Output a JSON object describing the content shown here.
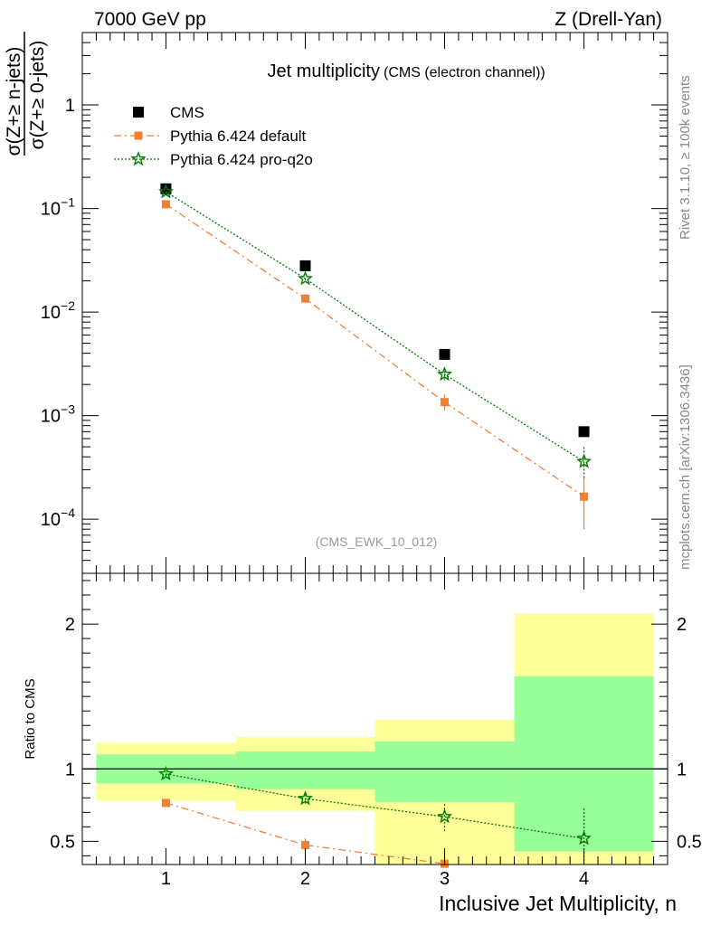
{
  "header": {
    "left": "7000 GeV pp",
    "right": "Z (Drell-Yan)"
  },
  "side_labels": {
    "rivet": "Rivet 3.1.10, ≥ 100k events",
    "mcplots": "mcplots.cern.ch [arXiv:1306.3436]"
  },
  "chart_data": [
    {
      "type": "scatter",
      "title": "Jet multiplicity",
      "subtitle": "(CMS (electron channel))",
      "watermark": "(CMS_EWK_10_012)",
      "ylabel_num": "σ(Z+≥ n-jets)",
      "ylabel_den": "σ(Z+≥ 0-jets)",
      "yscale": "log",
      "ylim": [
        3e-05,
        5
      ],
      "xlim": [
        0.4,
        4.6
      ],
      "y_ticks": [
        {
          "value": 0.0001,
          "base": "10",
          "exp": "−4"
        },
        {
          "value": 0.001,
          "base": "10",
          "exp": "−3"
        },
        {
          "value": 0.01,
          "base": "10",
          "exp": "−2"
        },
        {
          "value": 0.1,
          "base": "10",
          "exp": "−1"
        },
        {
          "value": 1,
          "base": "1",
          "exp": ""
        }
      ],
      "legend_position": "top-left",
      "series": [
        {
          "name": "CMS",
          "color": "#000000",
          "marker": "square",
          "x": [
            1,
            2,
            3,
            4
          ],
          "y": [
            0.155,
            0.028,
            0.0039,
            0.0007
          ]
        },
        {
          "name": "Pythia 6.424 default",
          "color": "#f47f30",
          "marker": "small-square",
          "line": "dash-dot",
          "x": [
            1,
            2,
            3,
            4
          ],
          "y": [
            0.11,
            0.0135,
            0.00135,
            0.000165
          ],
          "err_low": [
            0.104,
            0.0128,
            0.00112,
            8e-05
          ],
          "err_high": [
            0.116,
            0.0142,
            0.0016,
            0.00025
          ]
        },
        {
          "name": "Pythia 6.424 pro-q2o",
          "color": "#007a00",
          "marker": "star",
          "line": "dotted",
          "x": [
            1,
            2,
            3,
            4
          ],
          "y": [
            0.145,
            0.021,
            0.0025,
            0.00036
          ],
          "err_low": [
            0.14,
            0.0203,
            0.0022,
            0.00025
          ],
          "err_high": [
            0.15,
            0.0218,
            0.0028,
            0.0005
          ]
        }
      ]
    },
    {
      "type": "scatter",
      "ylabel": "Ratio to CMS",
      "xlabel": "Inclusive Jet Multiplicity, n",
      "ylim": [
        0.34,
        2.35
      ],
      "xlim": [
        0.4,
        4.6
      ],
      "x_ticks": [
        "1",
        "2",
        "3",
        "4"
      ],
      "y_ticks": [
        {
          "value": 0.5,
          "label": "0.5"
        },
        {
          "value": 1,
          "label": "1"
        },
        {
          "value": 2,
          "label": "2"
        }
      ],
      "bands": [
        {
          "x0": 0.5,
          "x1": 1.5,
          "inner": [
            0.9,
            1.1
          ],
          "outer": [
            0.78,
            1.18
          ]
        },
        {
          "x0": 1.5,
          "x1": 2.5,
          "inner": [
            0.86,
            1.12
          ],
          "outer": [
            0.71,
            1.22
          ]
        },
        {
          "x0": 2.5,
          "x1": 3.5,
          "inner": [
            0.77,
            1.19
          ],
          "outer": [
            0.34,
            1.34
          ]
        },
        {
          "x0": 3.5,
          "x1": 4.5,
          "inner": [
            0.43,
            1.64
          ],
          "outer": [
            0.34,
            2.07
          ]
        }
      ],
      "inner_band_color": "#99ff99",
      "outer_band_color": "#ffff99",
      "series": [
        {
          "name": "Pythia 6.424 default",
          "color": "#f47f30",
          "x": [
            1,
            2,
            3
          ],
          "y": [
            0.765,
            0.475,
            0.345
          ],
          "err_low": [
            0.75,
            0.43,
            0.3
          ],
          "err_high": [
            0.78,
            0.52,
            0.4
          ]
        },
        {
          "name": "Pythia 6.424 pro-q2o",
          "color": "#007a00",
          "x": [
            1,
            2,
            3,
            4
          ],
          "y": [
            0.965,
            0.795,
            0.67,
            0.52
          ],
          "err_low": [
            0.95,
            0.76,
            0.57,
            0.34
          ],
          "err_high": [
            0.98,
            0.83,
            0.76,
            0.73
          ]
        }
      ]
    }
  ]
}
